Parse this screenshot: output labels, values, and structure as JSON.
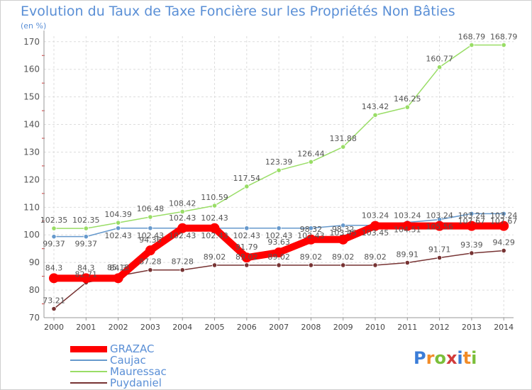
{
  "title": "Evolution du Taux de Taxe Foncière sur les Propriétés Non Bâties",
  "unit_label": "(en %)",
  "brand": "Proxiti",
  "chart_data": {
    "type": "line",
    "title": "Evolution du Taux de Taxe Foncière sur les Propriétés Non Bâties",
    "ylabel": "(en %)",
    "xlabel": "",
    "ylim": [
      70,
      172
    ],
    "yticks": [
      70,
      80,
      90,
      100,
      110,
      120,
      130,
      140,
      150,
      160,
      170
    ],
    "categories": [
      "2000",
      "2001",
      "2002",
      "2003",
      "2004",
      "2005",
      "2006",
      "2007",
      "2008",
      "2009",
      "2010",
      "2011",
      "2012",
      "2013",
      "2014"
    ],
    "series": [
      {
        "name": "GRAZAC",
        "color": "#ff0000",
        "values": [
          84.3,
          84.3,
          84.3,
          94.36,
          102.43,
          102.43,
          91.79,
          93.63,
          98.32,
          98.32,
          103.24,
          103.24,
          103.24,
          103.24,
          103.24
        ],
        "labels": [
          "84.3",
          "84.3",
          "84.3",
          "94.36",
          "102.43",
          "102.43",
          "91.79",
          "93.63",
          "98.32",
          "98.32",
          "103.24",
          "103.24",
          "103.24",
          "103.24",
          "103.24"
        ]
      },
      {
        "name": "Caujac",
        "color": "#6699cc",
        "values": [
          99.37,
          99.37,
          102.43,
          102.43,
          102.43,
          102.43,
          102.43,
          102.43,
          102.43,
          103.45,
          103.45,
          104.51,
          105.56,
          107.67,
          107.67
        ],
        "labels": [
          "99.37",
          "99.37",
          "102.43",
          "102.43",
          "102.43",
          "102.43",
          "102.43",
          "102.43",
          "102.43",
          "103.45",
          "103.45",
          "104.51",
          "105.56",
          "107.67",
          "107.67"
        ]
      },
      {
        "name": "Mauressac",
        "color": "#99dd66",
        "values": [
          102.35,
          102.35,
          104.39,
          106.48,
          108.42,
          110.59,
          117.54,
          123.39,
          126.44,
          131.88,
          143.42,
          146.25,
          160.77,
          168.79,
          168.79
        ],
        "labels": [
          "102.35",
          "102.35",
          "104.39",
          "106.48",
          "108.42",
          "110.59",
          "117.54",
          "123.39",
          "126.44",
          "131.88",
          "143.42",
          "146.25",
          "160.77",
          "168.79",
          "168.79"
        ]
      },
      {
        "name": "Puydaniel",
        "color": "#773333",
        "values": [
          73.21,
          82.71,
          85.13,
          87.28,
          87.28,
          89.02,
          89.02,
          89.02,
          89.02,
          89.02,
          89.02,
          89.91,
          91.71,
          93.39,
          94.29
        ],
        "labels": [
          "73.21",
          "82.71",
          "85.13",
          "87.28",
          "87.28",
          "89.02",
          "89.02",
          "89.02",
          "89.02",
          "89.02",
          "89.02",
          "89.91",
          "91.71",
          "93.39",
          "94.29"
        ]
      }
    ],
    "legend": {
      "position": "bottom-left",
      "items": [
        "GRAZAC",
        "Caujac",
        "Mauressac",
        "Puydaniel"
      ]
    }
  }
}
